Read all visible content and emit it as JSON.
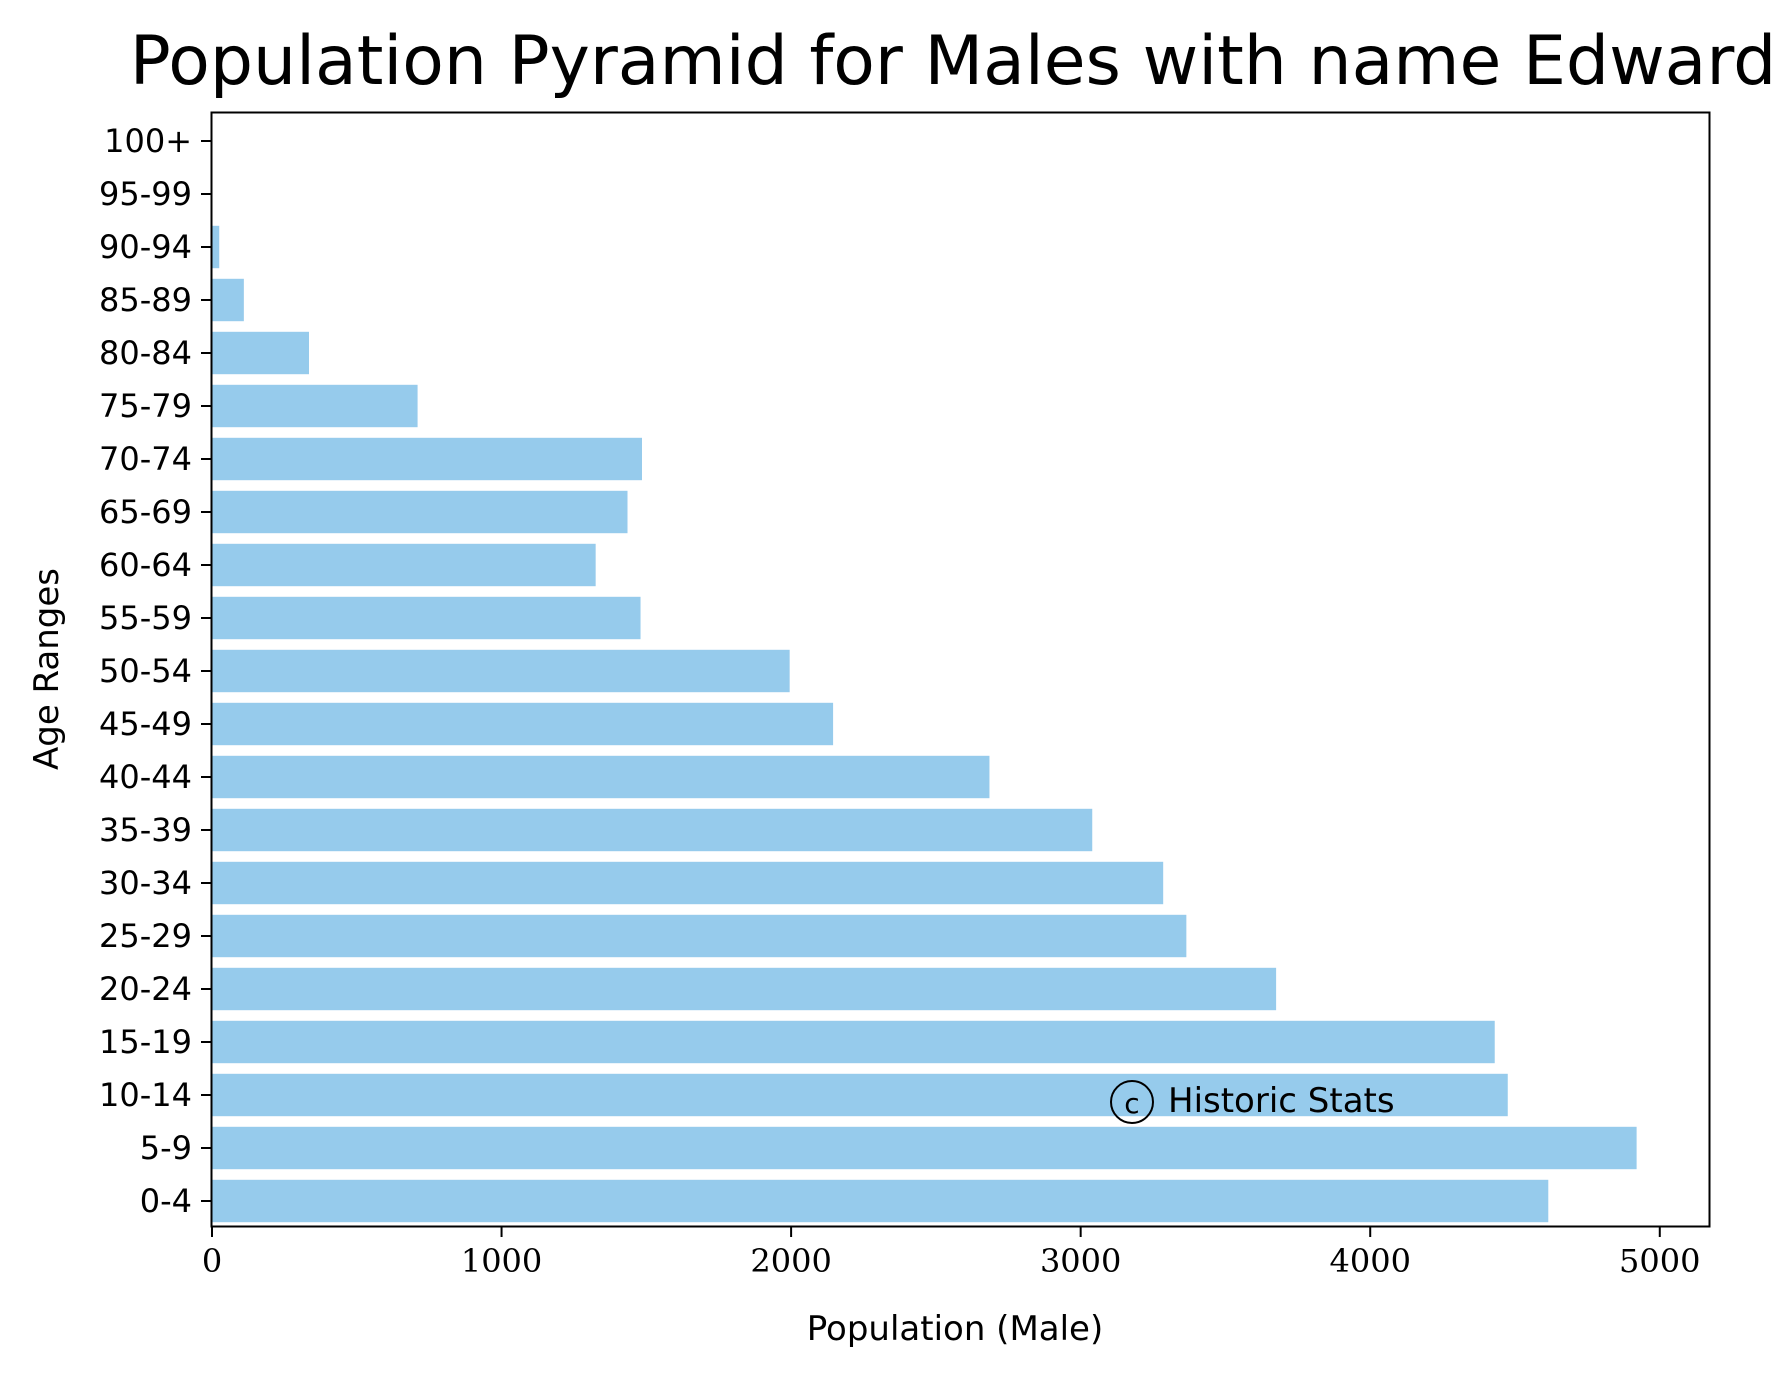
{
  "chart_data": {
    "type": "bar",
    "orientation": "horizontal",
    "title": "Population Pyramid for Males with name Edward",
    "xlabel": "Population (Male)",
    "ylabel": "Age Ranges",
    "categories": [
      "0-4",
      "5-9",
      "10-14",
      "15-19",
      "20-24",
      "25-29",
      "30-34",
      "35-39",
      "40-44",
      "45-49",
      "50-54",
      "55-59",
      "60-64",
      "65-69",
      "70-74",
      "75-79",
      "80-84",
      "85-89",
      "90-94",
      "95-99",
      "100+"
    ],
    "values": [
      4615,
      4920,
      4475,
      4430,
      3675,
      3365,
      3285,
      3040,
      2685,
      2145,
      1995,
      1480,
      1325,
      1435,
      1485,
      710,
      335,
      110,
      25,
      0,
      0
    ],
    "xlim": [
      0,
      5170
    ],
    "xticks": [
      0,
      1000,
      2000,
      3000,
      4000,
      5000
    ],
    "xtick_labels": [
      "0",
      "1000",
      "2000",
      "3000",
      "4000",
      "5000"
    ],
    "bar_color": "#96cbec",
    "grid": false,
    "legend": "none",
    "annotation": {
      "symbol": "c",
      "text": "Historic Stats"
    }
  }
}
